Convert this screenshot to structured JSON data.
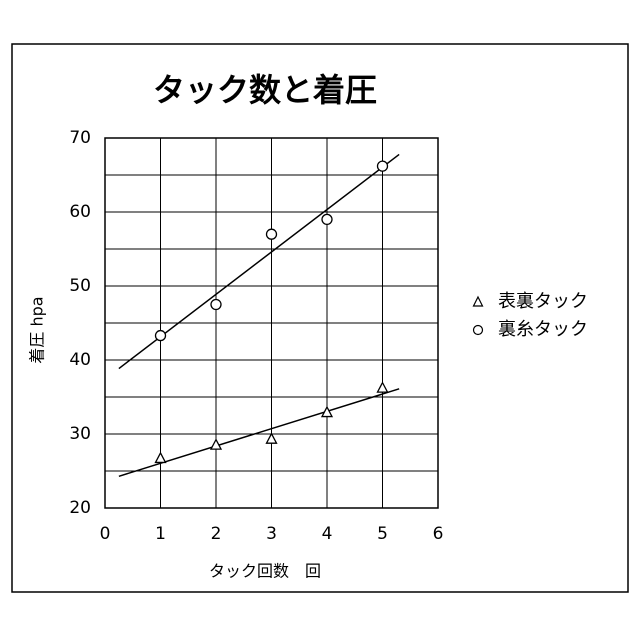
{
  "chart_data": {
    "type": "scatter",
    "title": "タック数と着圧",
    "x_label": "タック回数　回",
    "y_label": "着圧 hpa",
    "xlim": [
      0,
      6
    ],
    "xticks": [
      0,
      1,
      2,
      3,
      4,
      5,
      6
    ],
    "ylim": [
      20,
      70
    ],
    "yticks": [
      20,
      30,
      40,
      50,
      60,
      70
    ],
    "y_minor_grid": [
      25,
      35,
      45,
      55,
      65
    ],
    "grid": true,
    "legend": "right",
    "trendline": "linear",
    "trendline_xrange": [
      0.25,
      5.3
    ],
    "series": [
      {
        "name": "表裏タック",
        "marker": "triangle",
        "color": "#000000",
        "x": [
          1,
          2,
          3,
          4,
          5
        ],
        "values": [
          26.7,
          28.5,
          29.3,
          32.9,
          36.2
        ]
      },
      {
        "name": "裏糸タック",
        "marker": "circle",
        "color": "#000000",
        "x": [
          1,
          2,
          3,
          4,
          5
        ],
        "values": [
          43.3,
          47.5,
          57,
          59,
          66.2
        ]
      }
    ]
  }
}
